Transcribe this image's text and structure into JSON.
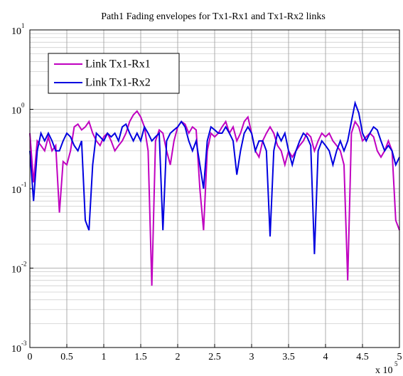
{
  "chart_data": {
    "type": "line",
    "title": "Path1 Fading envelopes for Tx1-Rx1 and Tx1-Rx2 links",
    "x": [
      0,
      5000,
      10000,
      15000,
      20000,
      25000,
      30000,
      35000,
      40000,
      45000,
      50000,
      55000,
      60000,
      65000,
      70000,
      75000,
      80000,
      85000,
      90000,
      95000,
      100000,
      105000,
      110000,
      115000,
      120000,
      125000,
      130000,
      135000,
      140000,
      145000,
      150000,
      155000,
      160000,
      165000,
      170000,
      175000,
      180000,
      185000,
      190000,
      195000,
      200000,
      205000,
      210000,
      215000,
      220000,
      225000,
      230000,
      235000,
      240000,
      245000,
      250000,
      255000,
      260000,
      265000,
      270000,
      275000,
      280000,
      285000,
      290000,
      295000,
      300000,
      305000,
      310000,
      315000,
      320000,
      325000,
      330000,
      335000,
      340000,
      345000,
      350000,
      355000,
      360000,
      365000,
      370000,
      375000,
      380000,
      385000,
      390000,
      395000,
      400000,
      405000,
      410000,
      415000,
      420000,
      425000,
      430000,
      435000,
      440000,
      445000,
      450000,
      455000,
      460000,
      465000,
      470000,
      475000,
      480000,
      485000,
      490000,
      495000,
      500000
    ],
    "series": [
      {
        "name": "Link Tx1-Rx1",
        "color": "#c000c0",
        "values": [
          0.5,
          0.12,
          0.4,
          0.35,
          0.3,
          0.45,
          0.3,
          0.35,
          0.05,
          0.22,
          0.2,
          0.3,
          0.6,
          0.65,
          0.55,
          0.6,
          0.7,
          0.5,
          0.4,
          0.35,
          0.45,
          0.5,
          0.4,
          0.3,
          0.35,
          0.4,
          0.5,
          0.7,
          0.85,
          0.95,
          0.8,
          0.6,
          0.3,
          0.006,
          0.4,
          0.55,
          0.5,
          0.3,
          0.2,
          0.4,
          0.6,
          0.7,
          0.65,
          0.5,
          0.6,
          0.55,
          0.1,
          0.03,
          0.3,
          0.5,
          0.45,
          0.5,
          0.6,
          0.7,
          0.5,
          0.6,
          0.4,
          0.5,
          0.7,
          0.8,
          0.5,
          0.3,
          0.25,
          0.4,
          0.5,
          0.6,
          0.5,
          0.35,
          0.3,
          0.2,
          0.3,
          0.25,
          0.3,
          0.35,
          0.4,
          0.5,
          0.45,
          0.3,
          0.4,
          0.5,
          0.45,
          0.5,
          0.4,
          0.35,
          0.3,
          0.2,
          0.007,
          0.5,
          0.7,
          0.6,
          0.4,
          0.45,
          0.5,
          0.45,
          0.3,
          0.25,
          0.3,
          0.4,
          0.3,
          0.04,
          0.03
        ]
      },
      {
        "name": "Link Tx1-Rx2",
        "color": "#0000e0",
        "values": [
          0.3,
          0.07,
          0.3,
          0.5,
          0.4,
          0.5,
          0.4,
          0.3,
          0.3,
          0.4,
          0.5,
          0.45,
          0.35,
          0.3,
          0.4,
          0.04,
          0.03,
          0.2,
          0.5,
          0.45,
          0.4,
          0.5,
          0.45,
          0.5,
          0.4,
          0.6,
          0.65,
          0.5,
          0.4,
          0.5,
          0.4,
          0.6,
          0.5,
          0.4,
          0.45,
          0.5,
          0.03,
          0.4,
          0.5,
          0.55,
          0.6,
          0.7,
          0.6,
          0.4,
          0.3,
          0.4,
          0.2,
          0.1,
          0.4,
          0.6,
          0.55,
          0.5,
          0.5,
          0.6,
          0.5,
          0.4,
          0.15,
          0.3,
          0.5,
          0.6,
          0.5,
          0.3,
          0.4,
          0.4,
          0.3,
          0.025,
          0.3,
          0.5,
          0.4,
          0.5,
          0.3,
          0.2,
          0.3,
          0.4,
          0.5,
          0.45,
          0.35,
          0.015,
          0.3,
          0.4,
          0.35,
          0.3,
          0.2,
          0.3,
          0.4,
          0.3,
          0.4,
          0.7,
          1.2,
          0.9,
          0.5,
          0.4,
          0.5,
          0.6,
          0.55,
          0.4,
          0.3,
          0.35,
          0.3,
          0.2,
          0.25
        ]
      }
    ],
    "xlim": [
      0,
      500000
    ],
    "xticks": [
      {
        "value": 0,
        "label": "0"
      },
      {
        "value": 50000,
        "label": "0.5"
      },
      {
        "value": 100000,
        "label": "1"
      },
      {
        "value": 150000,
        "label": "1.5"
      },
      {
        "value": 200000,
        "label": "2"
      },
      {
        "value": 250000,
        "label": "2.5"
      },
      {
        "value": 300000,
        "label": "3"
      },
      {
        "value": 350000,
        "label": "3.5"
      },
      {
        "value": 400000,
        "label": "4"
      },
      {
        "value": 450000,
        "label": "4.5"
      },
      {
        "value": 500000,
        "label": "5"
      }
    ],
    "x_multiplier": {
      "label": "x 10",
      "exponent": "5"
    },
    "ylim": [
      0.001,
      10
    ],
    "yticks": [
      {
        "value": 0.001,
        "label": "10",
        "exponent": "-3"
      },
      {
        "value": 0.01,
        "label": "10",
        "exponent": "-2"
      },
      {
        "value": 0.1,
        "label": "10",
        "exponent": "-1"
      },
      {
        "value": 1,
        "label": "10",
        "exponent": "0"
      },
      {
        "value": 10,
        "label": "10",
        "exponent": "1"
      }
    ],
    "log_y": true,
    "grid": true,
    "minor_grid": true,
    "legend": "upper left"
  }
}
